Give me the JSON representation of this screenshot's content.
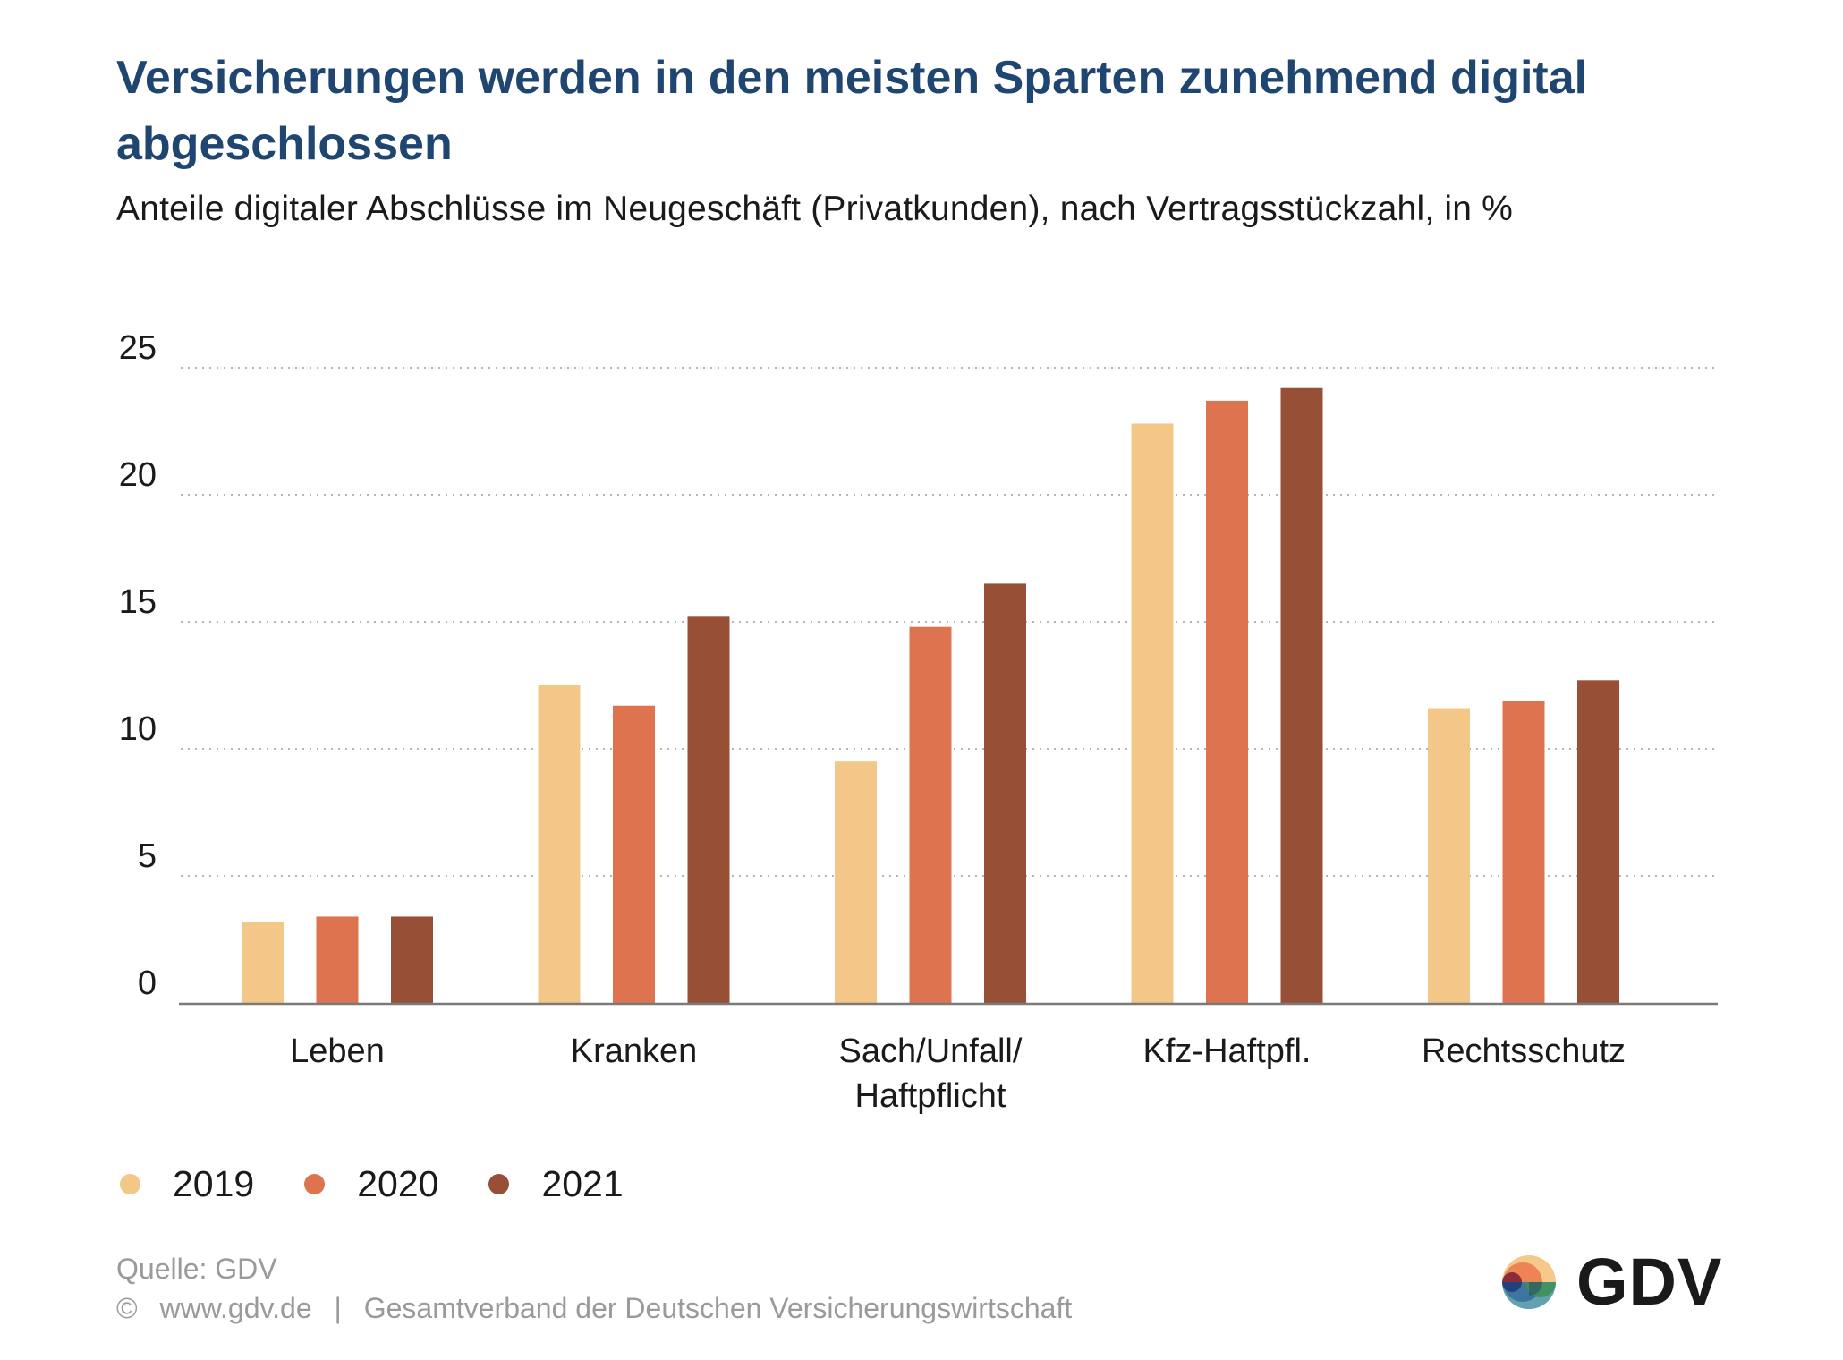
{
  "header": {
    "title": "Versicherungen werden in den meisten Sparten zunehmend digital abgeschlossen",
    "subtitle": "Anteile digitaler Abschlüsse im Neugeschäft (Privatkunden), nach Vertragsstückzahl, in %"
  },
  "chart_data": {
    "type": "bar",
    "title": "Versicherungen werden in den meisten Sparten zunehmend digital abgeschlossen",
    "subtitle": "Anteile digitaler Abschlüsse im Neugeschäft (Privatkunden), nach Vertragsstückzahl, in %",
    "xlabel": "",
    "ylabel": "",
    "categories": [
      "Leben",
      "Kranken",
      "Sach/Unfall/\nHaftpflicht",
      "Kfz-Haftpfl.",
      "Rechtsschutz"
    ],
    "category_lines": [
      [
        "Leben"
      ],
      [
        "Kranken"
      ],
      [
        "Sach/Unfall/",
        "Haftpflicht"
      ],
      [
        "Kfz-Haftpfl."
      ],
      [
        "Rechtsschutz"
      ]
    ],
    "series": [
      {
        "name": "2019",
        "color": "#f2c787",
        "values": [
          3.2,
          12.5,
          9.5,
          22.8,
          11.6
        ]
      },
      {
        "name": "2020",
        "color": "#de7350",
        "values": [
          3.4,
          11.7,
          14.8,
          23.7,
          11.9
        ]
      },
      {
        "name": "2021",
        "color": "#974f36",
        "values": [
          3.4,
          15.2,
          16.5,
          24.2,
          12.7
        ]
      }
    ],
    "ylim": [
      0,
      25
    ],
    "yticks": [
      0,
      5,
      10,
      15,
      20,
      25
    ],
    "grid": true,
    "grid_style": "dotted",
    "legend_position": "bottom-left"
  },
  "legend": [
    {
      "label": "2019",
      "color": "#f2c787"
    },
    {
      "label": "2020",
      "color": "#de7350"
    },
    {
      "label": "2021",
      "color": "#974f36"
    }
  ],
  "footer": {
    "source": "Quelle: GDV",
    "copyright_symbol": "©",
    "website": "www.gdv.de",
    "separator": "|",
    "organization": "Gesamtverband der Deutschen Versicherungswirtschaft"
  },
  "logo": {
    "text": "GDV",
    "icon": "gdv-logo-circle-icon"
  },
  "colors": {
    "title": "#1f4571",
    "text": "#1a1a1a",
    "footer": "#9a9a9a",
    "grid": "#b5b5b5",
    "axis": "#7a7a7a"
  }
}
